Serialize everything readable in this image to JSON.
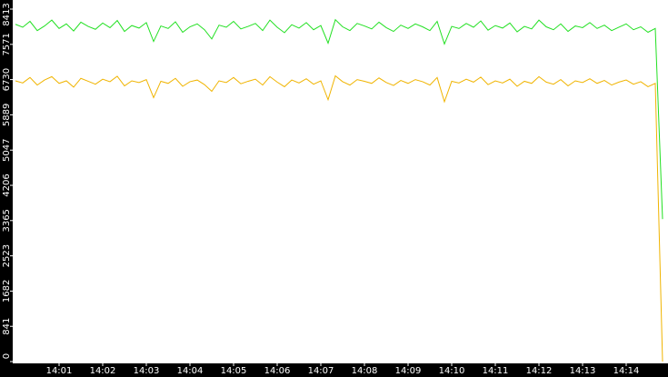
{
  "chart_data": {
    "type": "line",
    "categories": [
      null,
      null,
      null,
      null,
      null,
      null,
      "14:01",
      null,
      null,
      null,
      null,
      null,
      "14:02",
      null,
      null,
      null,
      null,
      null,
      "14:03",
      null,
      null,
      null,
      null,
      null,
      "14:04",
      null,
      null,
      null,
      null,
      null,
      "14:05",
      null,
      null,
      null,
      null,
      null,
      "14:06",
      null,
      null,
      null,
      null,
      null,
      "14:07",
      null,
      null,
      null,
      null,
      null,
      "14:08",
      null,
      null,
      null,
      null,
      null,
      "14:09",
      null,
      null,
      null,
      null,
      null,
      "14:10",
      null,
      null,
      null,
      null,
      null,
      "14:11",
      null,
      null,
      null,
      null,
      null,
      "14:12",
      null,
      null,
      null,
      null,
      null,
      "14:13",
      null,
      null,
      null,
      null,
      null,
      "14:14",
      null,
      null,
      null,
      null,
      null
    ],
    "series": [
      {
        "color": "#22e022",
        "values": [
          8050,
          7980,
          8120,
          7900,
          8010,
          8150,
          7950,
          8060,
          7890,
          8100,
          8000,
          7930,
          8080,
          7970,
          8140,
          7880,
          8020,
          7960,
          8090,
          7640,
          8010,
          7950,
          8110,
          7860,
          7990,
          8060,
          7920,
          7700,
          8030,
          7980,
          8120,
          7940,
          8000,
          8070,
          7900,
          8150,
          7980,
          7850,
          8040,
          7960,
          8090,
          7920,
          8020,
          7600,
          8160,
          7990,
          7900,
          8070,
          8010,
          7940,
          8100,
          7970,
          7880,
          8030,
          7950,
          8060,
          7990,
          7900,
          8120,
          7580,
          8000,
          7950,
          8070,
          7980,
          8130,
          7910,
          8020,
          7960,
          8080,
          7870,
          8000,
          7940,
          8150,
          7990,
          7920,
          8060,
          7880,
          8010,
          7970,
          8090,
          7950,
          8030,
          7900,
          7980,
          8060,
          7920,
          7990,
          7860,
          7950,
          3400
        ]
      },
      {
        "color": "#f0b400",
        "values": [
          6700,
          6650,
          6780,
          6600,
          6720,
          6800,
          6640,
          6700,
          6550,
          6760,
          6690,
          6620,
          6740,
          6680,
          6810,
          6580,
          6700,
          6660,
          6730,
          6300,
          6690,
          6640,
          6760,
          6570,
          6680,
          6720,
          6610,
          6450,
          6700,
          6660,
          6780,
          6630,
          6690,
          6740,
          6600,
          6800,
          6670,
          6560,
          6720,
          6650,
          6750,
          6620,
          6700,
          6250,
          6820,
          6680,
          6600,
          6730,
          6690,
          6640,
          6770,
          6660,
          6590,
          6710,
          6640,
          6730,
          6680,
          6600,
          6780,
          6200,
          6690,
          6650,
          6740,
          6670,
          6790,
          6610,
          6700,
          6650,
          6740,
          6570,
          6690,
          6640,
          6800,
          6670,
          6620,
          6730,
          6580,
          6700,
          6660,
          6750,
          6640,
          6710,
          6600,
          6670,
          6720,
          6620,
          6680,
          6560,
          6640,
          0
        ]
      }
    ],
    "ylim": [
      0,
      8413
    ],
    "yticks": [
      0,
      841,
      1682,
      2523,
      3365,
      4206,
      5047,
      5889,
      6730,
      7571,
      8413
    ]
  }
}
